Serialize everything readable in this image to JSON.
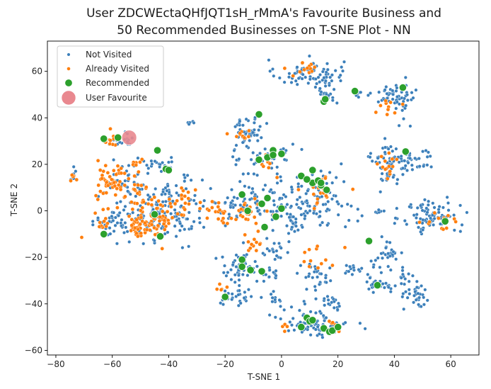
{
  "colors": {
    "not_visited": "#3b7fba",
    "already_visited": "#ff7f0e",
    "recommended": "#2ca02c",
    "user_favourite": "#e9888f"
  },
  "chart_data": {
    "type": "scatter",
    "title_line1": "User ZDCWEctaQHfJQT1sH_rMmA's Favourite Business and",
    "title_line2": "50 Recommended Businesses on T-SNE Plot - NN",
    "xlabel": "T-SNE 1",
    "ylabel": "T-SNE 2",
    "xlim": [
      -83,
      70
    ],
    "ylim": [
      -62,
      73
    ],
    "xticks": [
      -80,
      -60,
      -40,
      -20,
      0,
      20,
      40,
      60
    ],
    "yticks": [
      -60,
      -40,
      -20,
      0,
      20,
      40,
      60
    ],
    "xtick_labels": [
      "−80",
      "−60",
      "−40",
      "−20",
      "0",
      "20",
      "40",
      "60"
    ],
    "ytick_labels": [
      "−60",
      "−40",
      "−20",
      "0",
      "20",
      "40",
      "60"
    ],
    "grid": false,
    "legend_position": "top-left",
    "legend": [
      "Not Visited",
      "Already Visited",
      "Recommended",
      "User Favourite"
    ],
    "series": [
      {
        "name": "Not Visited",
        "clusters": [
          {
            "x": 10,
            "y": 59,
            "sx": 6,
            "sy": 3,
            "n": 80
          },
          {
            "x": 16,
            "y": 50,
            "sx": 2,
            "sy": 2,
            "n": 20
          },
          {
            "x": 27,
            "y": 51,
            "sx": 1.2,
            "sy": 1,
            "n": 6
          },
          {
            "x": 38,
            "y": 50,
            "sx": 3,
            "sy": 2.5,
            "n": 35
          },
          {
            "x": 44,
            "y": 47,
            "sx": 2,
            "sy": 4,
            "n": 25
          },
          {
            "x": 46,
            "y": 22,
            "sx": 4,
            "sy": 3,
            "n": 45
          },
          {
            "x": 37,
            "y": 23,
            "sx": 2.5,
            "sy": 3,
            "n": 25
          },
          {
            "x": 38,
            "y": 15,
            "sx": 2,
            "sy": 3,
            "n": 20
          },
          {
            "x": 53,
            "y": -2,
            "sx": 5,
            "sy": 4,
            "n": 85
          },
          {
            "x": 35,
            "y": 0,
            "sx": 1,
            "sy": 0.5,
            "n": 6
          },
          {
            "x": 37,
            "y": -19,
            "sx": 3,
            "sy": 3,
            "n": 30
          },
          {
            "x": 35,
            "y": -30,
            "sx": 3,
            "sy": 3,
            "n": 25
          },
          {
            "x": 48,
            "y": -37,
            "sx": 3,
            "sy": 3,
            "n": 35
          },
          {
            "x": 43,
            "y": -28,
            "sx": 2,
            "sy": 2,
            "n": 10
          },
          {
            "x": 12,
            "y": -48,
            "sx": 6,
            "sy": 3,
            "n": 80
          },
          {
            "x": 17,
            "y": -40,
            "sx": 3,
            "sy": 2,
            "n": 20
          },
          {
            "x": 13,
            "y": -28,
            "sx": 4,
            "sy": 3,
            "n": 30
          },
          {
            "x": 25,
            "y": -25,
            "sx": 2,
            "sy": 1.5,
            "n": 12
          },
          {
            "x": 10,
            "y": 5,
            "sx": 8,
            "sy": 6,
            "n": 110
          },
          {
            "x": -7,
            "y": 25,
            "sx": 5,
            "sy": 5,
            "n": 50
          },
          {
            "x": -12,
            "y": 35,
            "sx": 3,
            "sy": 2.5,
            "n": 35
          },
          {
            "x": -8,
            "y": 5,
            "sx": 4,
            "sy": 4,
            "n": 40
          },
          {
            "x": -17,
            "y": 2,
            "sx": 3,
            "sy": 3,
            "n": 25
          },
          {
            "x": -15,
            "y": -25,
            "sx": 4,
            "sy": 4,
            "n": 50
          },
          {
            "x": -15,
            "y": -37,
            "sx": 3,
            "sy": 2,
            "n": 25
          },
          {
            "x": -2,
            "y": -18,
            "sx": 2.5,
            "sy": 2.5,
            "n": 20
          },
          {
            "x": -5,
            "y": -28,
            "sx": 2,
            "sy": 2,
            "n": 15
          },
          {
            "x": -2,
            "y": -38,
            "sx": 2,
            "sy": 2,
            "n": 10
          },
          {
            "x": -38,
            "y": 6,
            "sx": 5,
            "sy": 4,
            "n": 55
          },
          {
            "x": -38,
            "y": -5,
            "sx": 5,
            "sy": 4,
            "n": 55
          },
          {
            "x": -58,
            "y": -5,
            "sx": 4,
            "sy": 4,
            "n": 50
          },
          {
            "x": -48,
            "y": 0,
            "sx": 3,
            "sy": 6,
            "n": 35
          },
          {
            "x": -55,
            "y": 13,
            "sx": 4,
            "sy": 4,
            "n": 35
          },
          {
            "x": -55,
            "y": 31,
            "sx": 3,
            "sy": 1.5,
            "n": 18
          },
          {
            "x": -43,
            "y": 20,
            "sx": 3,
            "sy": 2,
            "n": 20
          },
          {
            "x": -74,
            "y": 15,
            "sx": 0.7,
            "sy": 2,
            "n": 8
          },
          {
            "x": -32,
            "y": 38,
            "sx": 0.8,
            "sy": 0.5,
            "n": 6
          },
          {
            "x": 4,
            "y": -5,
            "sx": 4,
            "sy": 3,
            "n": 25
          }
        ]
      },
      {
        "name": "Already Visited",
        "clusters": [
          {
            "x": -60,
            "y": 13,
            "sx": 3,
            "sy": 4,
            "n": 50
          },
          {
            "x": -60,
            "y": 29,
            "sx": 2,
            "sy": 2,
            "n": 10
          },
          {
            "x": -51,
            "y": -7,
            "sx": 2.5,
            "sy": 2.5,
            "n": 40
          },
          {
            "x": -44,
            "y": -4,
            "sx": 3,
            "sy": 4,
            "n": 45
          },
          {
            "x": -50,
            "y": 7,
            "sx": 2,
            "sy": 3,
            "n": 20
          },
          {
            "x": -35,
            "y": 5,
            "sx": 3,
            "sy": 3,
            "n": 20
          },
          {
            "x": -63,
            "y": -3,
            "sx": 2,
            "sy": 3,
            "n": 12
          },
          {
            "x": -74,
            "y": 15,
            "sx": 0.5,
            "sy": 2,
            "n": 6
          },
          {
            "x": -50,
            "y": 20,
            "sx": 2,
            "sy": 2,
            "n": 8
          },
          {
            "x": -23,
            "y": 0,
            "sx": 3,
            "sy": 2,
            "n": 20
          },
          {
            "x": -12,
            "y": -3,
            "sx": 3,
            "sy": 3,
            "n": 25
          },
          {
            "x": -11,
            "y": -15,
            "sx": 2,
            "sy": 2,
            "n": 10
          },
          {
            "x": -15,
            "y": 32,
            "sx": 2,
            "sy": 2,
            "n": 10
          },
          {
            "x": -5,
            "y": 22,
            "sx": 2,
            "sy": 2,
            "n": 10
          },
          {
            "x": 9,
            "y": 60,
            "sx": 3,
            "sy": 2,
            "n": 12
          },
          {
            "x": 38,
            "y": 45,
            "sx": 2,
            "sy": 2,
            "n": 10
          },
          {
            "x": 38,
            "y": 20,
            "sx": 2,
            "sy": 3,
            "n": 15
          },
          {
            "x": 57,
            "y": -4,
            "sx": 3,
            "sy": 2,
            "n": 15
          },
          {
            "x": 13,
            "y": -20,
            "sx": 3,
            "sy": 3,
            "n": 12
          },
          {
            "x": 18,
            "y": -50,
            "sx": 2,
            "sy": 2,
            "n": 8
          },
          {
            "x": 1,
            "y": -50,
            "sx": 1,
            "sy": 1,
            "n": 4
          },
          {
            "x": -21,
            "y": -33,
            "sx": 1.5,
            "sy": 1.5,
            "n": 5
          },
          {
            "x": 12,
            "y": 8,
            "sx": 5,
            "sy": 4,
            "n": 20
          }
        ]
      },
      {
        "name": "Recommended",
        "points": [
          [
            -63,
            31
          ],
          [
            -58,
            31.5
          ],
          [
            -44,
            26
          ],
          [
            -41,
            18
          ],
          [
            -40,
            17.5
          ],
          [
            -63,
            -10
          ],
          [
            -45,
            -1.5
          ],
          [
            -43,
            -11
          ],
          [
            -8,
            41.5
          ],
          [
            -8,
            22
          ],
          [
            -5,
            23
          ],
          [
            -3,
            26
          ],
          [
            -3,
            24
          ],
          [
            0,
            24.5
          ],
          [
            -14,
            7
          ],
          [
            -12,
            0
          ],
          [
            -5,
            5.5
          ],
          [
            -2,
            -2.5
          ],
          [
            -6,
            -7
          ],
          [
            0,
            1
          ],
          [
            -14,
            -21
          ],
          [
            -14,
            -24
          ],
          [
            -11,
            -25.5
          ],
          [
            -7,
            -26
          ],
          [
            -20,
            -37
          ],
          [
            7,
            15
          ],
          [
            11,
            17.5
          ],
          [
            11,
            12
          ],
          [
            13,
            13
          ],
          [
            14,
            11
          ],
          [
            16,
            9
          ],
          [
            15,
            47
          ],
          [
            15.5,
            48
          ],
          [
            26,
            51.5
          ],
          [
            43,
            53
          ],
          [
            44,
            25.5
          ],
          [
            31,
            -13
          ],
          [
            34,
            -32
          ],
          [
            58,
            -4.5
          ],
          [
            7,
            -50
          ],
          [
            9,
            -46
          ],
          [
            10,
            -47.5
          ],
          [
            11,
            -47
          ],
          [
            15,
            -50.5
          ],
          [
            17,
            -52
          ],
          [
            18,
            -51.5
          ],
          [
            14,
            12
          ],
          [
            -7,
            3
          ],
          [
            9,
            13.5
          ],
          [
            20,
            -50
          ]
        ]
      },
      {
        "name": "User Favourite",
        "points": [
          [
            -54,
            31.5
          ]
        ]
      }
    ]
  }
}
